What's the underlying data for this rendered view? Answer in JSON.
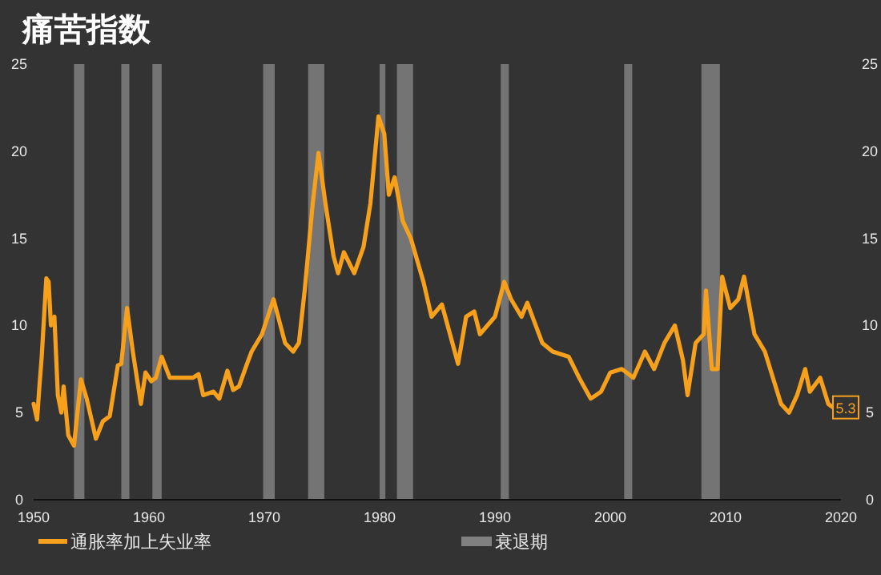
{
  "chart_data": {
    "type": "line",
    "title": "痛苦指数",
    "x": [
      1950.0,
      1950.3,
      1950.5,
      1950.7,
      1951.1,
      1951.3,
      1951.5,
      1951.8,
      1952.1,
      1952.4,
      1952.6,
      1953.0,
      1953.5,
      1954.1,
      1954.6,
      1955.4,
      1956.0,
      1956.6,
      1957.3,
      1957.6,
      1958.1,
      1958.6,
      1959.3,
      1959.7,
      1960.2,
      1960.6,
      1961.1,
      1961.8,
      1962.5,
      1963.8,
      1964.3,
      1964.7,
      1965.6,
      1966.1,
      1966.8,
      1967.3,
      1967.8,
      1968.5,
      1968.9,
      1969.8,
      1970.8,
      1971.2,
      1971.8,
      1972.5,
      1973.0,
      1973.5,
      1974.2,
      1974.7,
      1975.3,
      1976.0,
      1976.4,
      1976.9,
      1977.8,
      1978.6,
      1979.2,
      1979.9,
      1980.4,
      1980.8,
      1981.3,
      1982.0,
      1982.7,
      1983.8,
      1984.5,
      1985.4,
      1986.8,
      1987.5,
      1988.2,
      1988.7,
      1990.0,
      1990.8,
      1991.4,
      1992.3,
      1992.8,
      1994.1,
      1995.0,
      1996.4,
      1997.3,
      1998.3,
      1999.2,
      2000.0,
      2001.0,
      2002.0,
      2003.0,
      2003.8,
      2004.7,
      2005.6,
      2006.3,
      2006.7,
      2007.4,
      2008.1,
      2008.3,
      2008.8,
      2009.3,
      2009.7,
      2010.4,
      2011.1,
      2011.6,
      2012.5,
      2013.4,
      2014.8,
      2015.5,
      2016.2,
      2016.9,
      2017.3,
      2018.2,
      2018.9,
      2019.3
    ],
    "series": [
      {
        "name": "通胀率加上失业率",
        "color": "#f7a01c",
        "values": [
          5.5,
          4.6,
          6.5,
          8.2,
          12.7,
          12.5,
          10,
          10.5,
          6,
          5,
          6.5,
          3.7,
          3.1,
          6.9,
          5.8,
          3.5,
          4.5,
          4.8,
          7.7,
          7.8,
          11,
          8.5,
          5.5,
          7.3,
          6.8,
          7,
          8.2,
          7,
          7,
          7,
          7.2,
          6,
          6.2,
          5.8,
          7.4,
          6.3,
          6.5,
          7.8,
          8.5,
          9.5,
          11.5,
          10.5,
          9,
          8.5,
          9,
          12,
          17,
          19.9,
          17,
          14,
          13,
          14.2,
          13,
          14.5,
          17,
          22,
          21,
          17.5,
          18.5,
          16,
          15,
          12.5,
          10.5,
          11.2,
          7.8,
          10.5,
          10.8,
          9.5,
          10.5,
          12.5,
          11.5,
          10.5,
          11.3,
          9,
          8.5,
          8.2,
          7,
          5.8,
          6.2,
          7.3,
          7.5,
          7,
          8.5,
          7.5,
          9,
          10,
          8,
          6,
          9,
          9.5,
          12,
          7.5,
          7.5,
          12.8,
          11,
          11.5,
          12.8,
          9.5,
          8.5,
          5.5,
          5,
          6,
          7.5,
          6.2,
          7,
          5.5,
          5.3
        ],
        "value_labels": [
          null,
          null,
          null,
          null,
          null,
          null,
          null,
          null,
          null,
          null,
          null,
          null,
          null,
          null,
          null,
          null,
          null,
          null,
          null,
          null,
          null,
          null,
          null,
          null,
          null,
          null,
          null,
          null,
          null,
          null,
          null,
          null,
          null,
          null,
          null,
          null,
          null,
          null,
          null,
          null,
          null,
          null,
          null,
          null,
          null,
          null,
          null,
          null,
          null,
          null,
          null,
          null,
          null,
          null,
          null,
          null,
          null,
          null,
          null,
          null,
          null,
          null,
          null,
          null,
          null,
          null,
          null,
          null,
          null,
          null,
          null,
          null,
          null,
          null,
          null,
          null,
          null,
          null,
          null,
          null,
          null,
          null,
          null,
          null,
          null,
          null,
          null,
          null,
          null,
          null,
          null,
          null,
          null,
          null,
          null,
          null,
          null,
          null,
          null,
          null,
          null,
          null,
          null,
          null,
          null,
          null,
          "5.3"
        ]
      }
    ],
    "xlim": [
      1950,
      2020
    ],
    "xticks": [
      1950,
      1960,
      1970,
      1980,
      1990,
      2000,
      2010,
      2020
    ],
    "ylim": [
      0,
      25
    ],
    "yticks": [
      0,
      5,
      10,
      15,
      20,
      25
    ],
    "y2lim": [
      0,
      25
    ],
    "y2ticks": [
      0,
      5,
      10,
      15,
      20,
      25
    ],
    "bands": [
      {
        "axis": "x",
        "from": 1953.5,
        "to": 1954.4,
        "label": "衰退期",
        "color": "#808080"
      },
      {
        "axis": "x",
        "from": 1957.6,
        "to": 1958.3,
        "color": "#808080"
      },
      {
        "axis": "x",
        "from": 1960.3,
        "to": 1961.1,
        "color": "#808080"
      },
      {
        "axis": "x",
        "from": 1969.9,
        "to": 1970.9,
        "color": "#808080"
      },
      {
        "axis": "x",
        "from": 1973.8,
        "to": 1975.2,
        "color": "#808080"
      },
      {
        "axis": "x",
        "from": 1980.0,
        "to": 1980.5,
        "color": "#808080"
      },
      {
        "axis": "x",
        "from": 1981.5,
        "to": 1982.9,
        "color": "#808080"
      },
      {
        "axis": "x",
        "from": 1990.5,
        "to": 1991.2,
        "color": "#808080"
      },
      {
        "axis": "x",
        "from": 2001.2,
        "to": 2001.9,
        "color": "#808080"
      },
      {
        "axis": "x",
        "from": 2007.9,
        "to": 2009.5,
        "color": "#808080"
      }
    ],
    "legend": "bottom"
  }
}
